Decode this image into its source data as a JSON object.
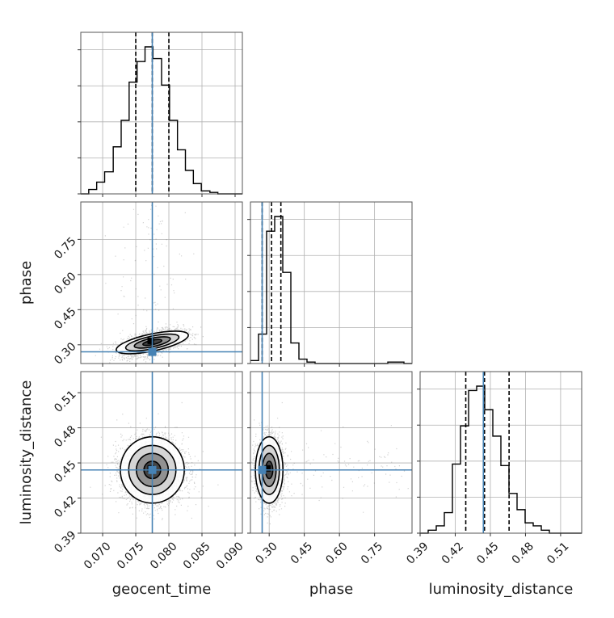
{
  "chart_data": {
    "type": "corner",
    "parameters": [
      {
        "name": "geocent_time",
        "label": "geocent_time",
        "range": [
          0.0667,
          0.0911
        ],
        "ticks": [
          "0.070",
          "0.075",
          "0.080",
          "0.085",
          "0.090"
        ],
        "tick_values": [
          0.07,
          0.075,
          0.08,
          0.085,
          0.09
        ],
        "truth": 0.0775,
        "quantiles": [
          0.075,
          0.0775,
          0.08
        ]
      },
      {
        "name": "phase",
        "label": "phase",
        "range": [
          0.22,
          0.91
        ],
        "ticks": [
          "0.30",
          "0.45",
          "0.60",
          "0.75"
        ],
        "tick_values": [
          0.3,
          0.45,
          0.6,
          0.75
        ],
        "truth": 0.27,
        "quantiles": [
          0.27,
          0.31,
          0.35
        ]
      },
      {
        "name": "luminosity_distance",
        "label": "luminosity_distance",
        "range": [
          0.39,
          0.528
        ],
        "ticks": [
          "0.39",
          "0.42",
          "0.45",
          "0.48",
          "0.51"
        ],
        "tick_values": [
          0.39,
          0.42,
          0.45,
          0.48,
          0.51
        ],
        "truth": 0.444,
        "quantiles": [
          0.429,
          0.445,
          0.466
        ]
      }
    ],
    "histograms": [
      {
        "param": "geocent_time",
        "edges": [
          0.0667,
          0.0679,
          0.0691,
          0.0703,
          0.0716,
          0.0728,
          0.074,
          0.0752,
          0.0764,
          0.0776,
          0.0789,
          0.0801,
          0.0813,
          0.0825,
          0.0837,
          0.0849,
          0.0862,
          0.0874,
          0.0886,
          0.0898,
          0.0911
        ],
        "counts": [
          0,
          3,
          8,
          15,
          32,
          50,
          76,
          90,
          100,
          92,
          74,
          50,
          30,
          16,
          7,
          2,
          1,
          0,
          0,
          0
        ]
      },
      {
        "param": "phase",
        "edges": [
          0.22,
          0.2545,
          0.289,
          0.3235,
          0.358,
          0.3925,
          0.427,
          0.4615,
          0.496,
          0.5305,
          0.565,
          0.5995,
          0.634,
          0.6685,
          0.703,
          0.7375,
          0.772,
          0.8065,
          0.841,
          0.8755,
          0.91
        ],
        "counts": [
          2,
          20,
          90,
          100,
          62,
          14,
          3,
          1,
          0,
          0,
          0,
          0,
          0,
          0,
          0,
          0,
          0,
          1,
          1,
          0
        ]
      },
      {
        "param": "luminosity_distance",
        "edges": [
          0.39,
          0.3969,
          0.4038,
          0.4107,
          0.4176,
          0.4245,
          0.4314,
          0.4383,
          0.4452,
          0.4521,
          0.459,
          0.4659,
          0.4728,
          0.4797,
          0.4866,
          0.4935,
          0.5004,
          0.5073,
          0.5142,
          0.5211,
          0.528
        ],
        "counts": [
          0,
          2,
          5,
          14,
          47,
          73,
          97,
          100,
          84,
          66,
          46,
          27,
          16,
          7,
          5,
          2,
          0,
          0,
          0,
          0
        ]
      }
    ],
    "joint_2d": [
      {
        "x": "geocent_time",
        "y": "phase",
        "center": [
          0.0775,
          0.31
        ],
        "contour_levels": [
          "0.5-sigma",
          "1-sigma",
          "1.5-sigma",
          "2-sigma"
        ]
      },
      {
        "x": "geocent_time",
        "y": "luminosity_distance",
        "center": [
          0.0775,
          0.444
        ],
        "contour_levels": [
          "0.5-sigma",
          "1-sigma",
          "1.5-sigma",
          "2-sigma"
        ]
      },
      {
        "x": "phase",
        "y": "luminosity_distance",
        "center": [
          0.3,
          0.444
        ],
        "contour_levels": [
          "0.5-sigma",
          "1-sigma",
          "1.5-sigma",
          "2-sigma"
        ]
      }
    ],
    "truth_color": "#4682b4",
    "grid": true
  }
}
